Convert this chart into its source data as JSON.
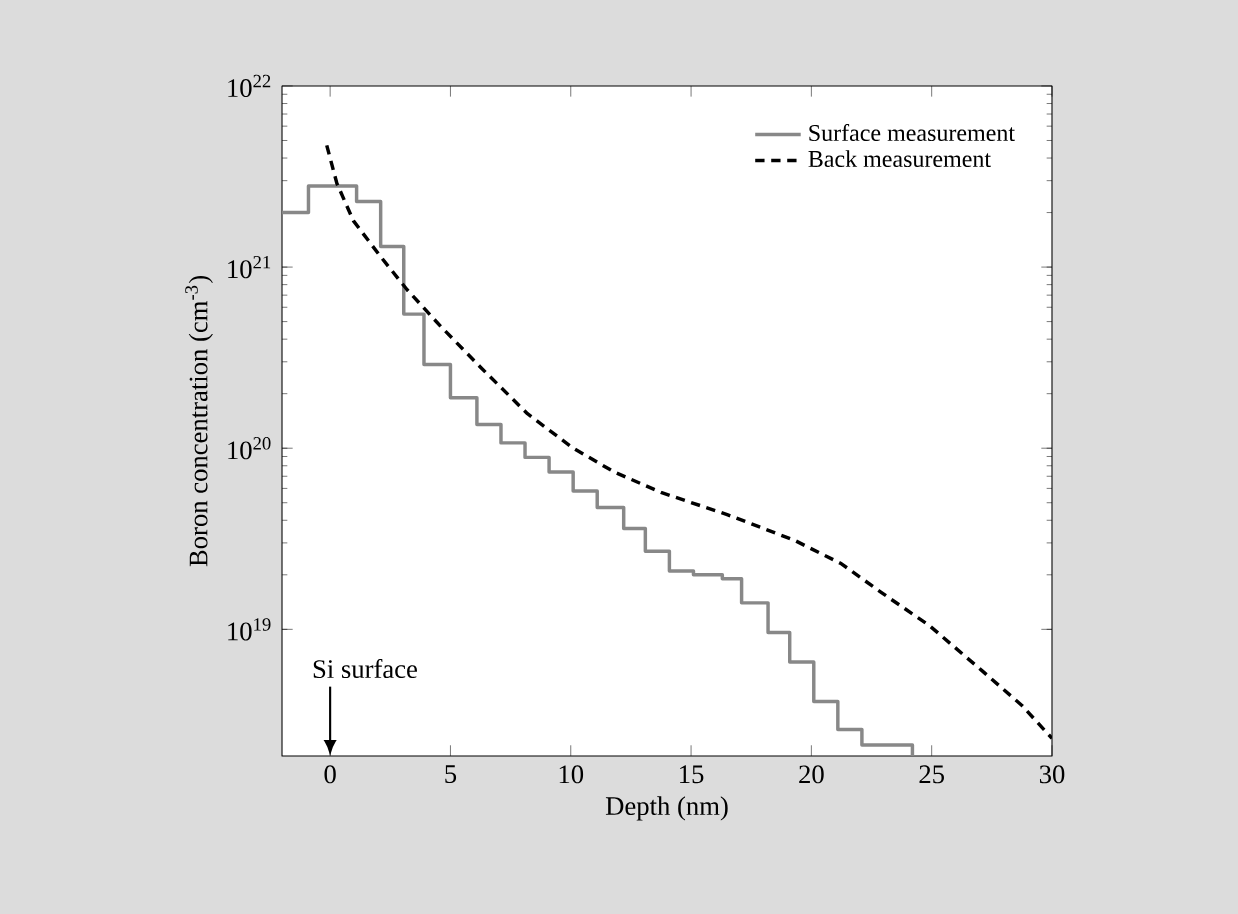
{
  "chart_data": {
    "type": "line",
    "xlabel": "Depth (nm)",
    "ylabel": "Boron concentration (cm$^{-3}$)",
    "xlim": [
      -2,
      30
    ],
    "xticks": [
      0,
      5,
      10,
      15,
      20,
      25,
      30
    ],
    "ylim": [
      2e+18,
      1e+22
    ],
    "yticks": [
      {
        "value": 1e+19,
        "label": "10$^{19}$"
      },
      {
        "value": 1e+20,
        "label": "10$^{20}$"
      },
      {
        "value": 1e+21,
        "label": "10$^{21}$"
      },
      {
        "value": 1e+22,
        "label": "10$^{22}$"
      }
    ],
    "log": "y",
    "legend": "top right",
    "series": [
      {
        "name": "Surface measurement",
        "type": "step",
        "color": "#888888",
        "line_style": "solid",
        "x": [
          -2,
          -0.9,
          1.1,
          2.1,
          3.06,
          3.9,
          5,
          6.1,
          7.1,
          8.1,
          9.1,
          10.1,
          11.1,
          12.2,
          13.1,
          14.1,
          15.1,
          16.3,
          17.1,
          18.2,
          19.1,
          20.1,
          21.1,
          22.1,
          24.2
        ],
        "values": [
          2e+21,
          2.8e+21,
          2.3e+21,
          1.3e+21,
          5.5e+20,
          2.9e+20,
          1.9e+20,
          1.35e+20,
          1.07e+20,
          8.9e+19,
          7.4e+19,
          5.8e+19,
          4.7e+19,
          3.6e+19,
          2.7e+19,
          2.1e+19,
          2e+19,
          1.9e+19,
          1.4e+19,
          9.6e+18,
          6.6e+18,
          4e+18,
          2.8e+18,
          2.3e+18,
          2e+18
        ]
      },
      {
        "name": "Back measurement",
        "color": "#000000",
        "line_style": "dashed",
        "x": [
          -0.14,
          0.28,
          0.97,
          2.08,
          3.2,
          4.6,
          6.25,
          8.2,
          10.1,
          11.8,
          13.75,
          16.5,
          19.3,
          21.25,
          22.9,
          24.9,
          27.1,
          28.75,
          30
        ],
        "values": [
          4.7e+21,
          2.9e+21,
          1.8e+21,
          1.15e+21,
          7.5e+20,
          4.7e+20,
          2.8e+20,
          1.55e+20,
          1e+20,
          7.4e+19,
          5.7e+19,
          4.3e+19,
          3.1e+19,
          2.3e+19,
          1.6e+19,
          1.05e+19,
          5.9e+18,
          3.8e+18,
          2.5e+18
        ]
      }
    ],
    "annotations": [
      "Si surface"
    ]
  }
}
